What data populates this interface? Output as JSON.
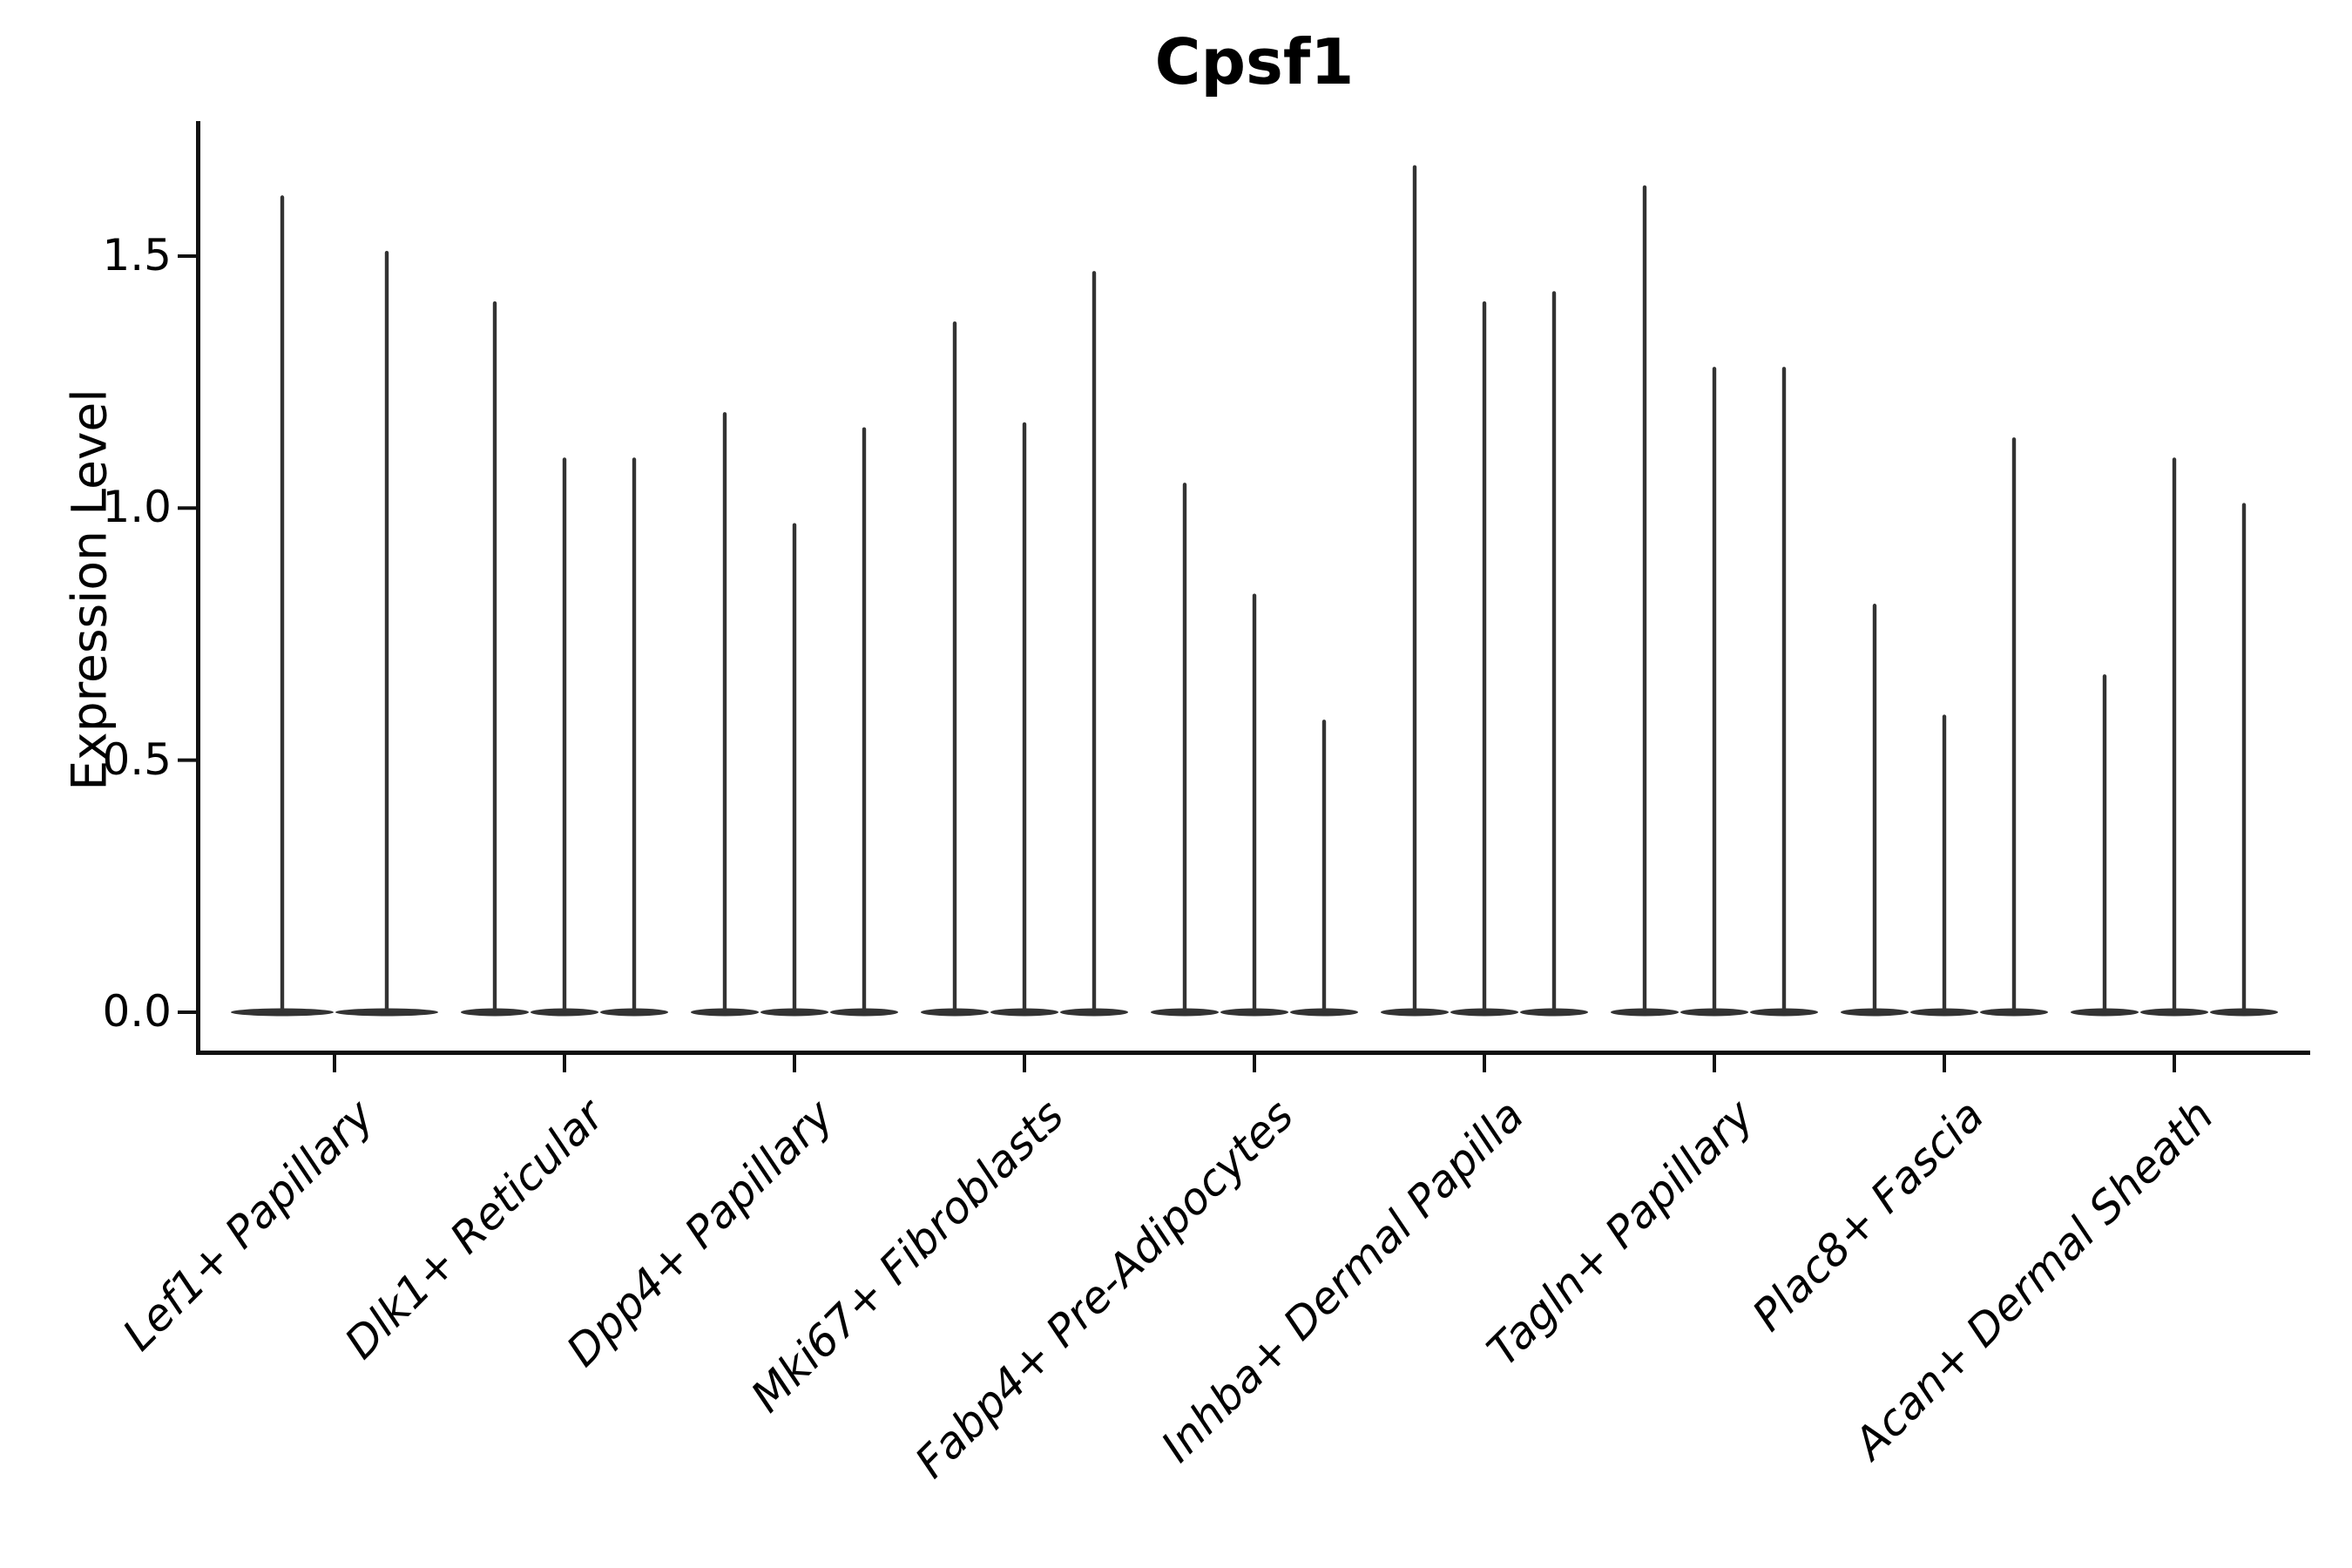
{
  "title": "Cpsf1",
  "axes": {
    "ylabel": "Expression Level",
    "y_ticks": [
      "0.0",
      "0.5",
      "1.0",
      "1.5"
    ],
    "y_tick_values": [
      0.0,
      0.5,
      1.0,
      1.5
    ],
    "x_tick_rotation_deg": 45
  },
  "colors": {
    "background": "#ffffff",
    "axis": "#111111",
    "text": "#000000",
    "violin": "#333333"
  },
  "chart_data": {
    "type": "violin",
    "title": "Cpsf1",
    "xlabel": "",
    "ylabel": "Expression Level",
    "ylim": [
      0,
      1.77
    ],
    "y_ticks": [
      0.0,
      0.5,
      1.0,
      1.5
    ],
    "grid": false,
    "legend": "none",
    "description": "Needle-shaped violins of gene expression per fibroblast subtype; each category contains multiple thin violins whose mass sits at 0 with a narrow spike reaching the listed maximum expression value.",
    "categories": [
      "Lef1+ Papillary",
      "Dlk1+ Reticular",
      "Dpp4+ Papillary",
      "Mki67+ Fibroblasts",
      "Fabp4+ Pre-Adipocytes",
      "Inhba+ Dermal Papilla",
      "Tagln+ Papillary",
      "Plac8+ Fascia",
      "Acan+ Dermal Sheath"
    ],
    "groups": [
      {
        "label": "Lef1+ Papillary",
        "violin_max_values": [
          1.62,
          1.51
        ]
      },
      {
        "label": "Dlk1+ Reticular",
        "violin_max_values": [
          1.41,
          1.1,
          1.1
        ]
      },
      {
        "label": "Dpp4+ Papillary",
        "violin_max_values": [
          1.19,
          0.97,
          1.16
        ]
      },
      {
        "label": "Mki67+ Fibroblasts",
        "violin_max_values": [
          1.37,
          1.17,
          1.47
        ]
      },
      {
        "label": "Fabp4+ Pre-Adipocytes",
        "violin_max_values": [
          1.05,
          0.83,
          0.58
        ]
      },
      {
        "label": "Inhba+ Dermal Papilla",
        "violin_max_values": [
          1.68,
          1.41,
          1.43
        ]
      },
      {
        "label": "Tagln+ Papillary",
        "violin_max_values": [
          1.64,
          1.28,
          1.28
        ]
      },
      {
        "label": "Plac8+ Fascia",
        "violin_max_values": [
          0.81,
          0.59,
          1.14
        ]
      },
      {
        "label": "Acan+ Dermal Sheath",
        "violin_max_values": [
          0.67,
          1.1,
          1.01
        ]
      }
    ]
  }
}
